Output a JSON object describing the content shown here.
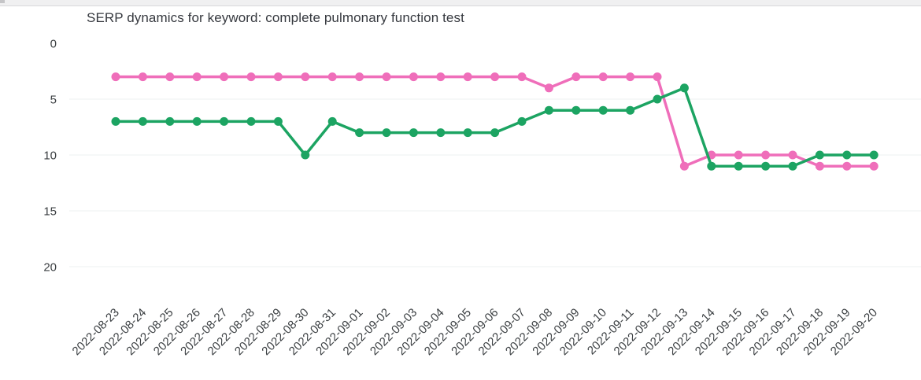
{
  "chart_data": {
    "type": "line",
    "title": "SERP dynamics for keyword: complete pulmonary function test",
    "x": [
      "2022-08-23",
      "2022-08-24",
      "2022-08-25",
      "2022-08-26",
      "2022-08-27",
      "2022-08-28",
      "2022-08-29",
      "2022-08-30",
      "2022-08-31",
      "2022-09-01",
      "2022-09-02",
      "2022-09-03",
      "2022-09-04",
      "2022-09-05",
      "2022-09-06",
      "2022-09-07",
      "2022-09-08",
      "2022-09-09",
      "2022-09-10",
      "2022-09-11",
      "2022-09-12",
      "2022-09-13",
      "2022-09-14",
      "2022-09-15",
      "2022-09-16",
      "2022-09-17",
      "2022-09-18",
      "2022-09-19",
      "2022-09-20"
    ],
    "series": [
      {
        "id": "pink-series",
        "name": "pink",
        "color": "#ef6eba",
        "values": [
          3,
          3,
          3,
          3,
          3,
          3,
          3,
          3,
          3,
          3,
          3,
          3,
          3,
          3,
          3,
          3,
          4,
          3,
          3,
          3,
          3,
          11,
          10,
          10,
          10,
          10,
          11,
          11,
          11
        ]
      },
      {
        "id": "green-series",
        "name": "green",
        "color": "#1ca462",
        "values": [
          7,
          7,
          7,
          7,
          7,
          7,
          7,
          10,
          7,
          8,
          8,
          8,
          8,
          8,
          8,
          7,
          6,
          6,
          6,
          6,
          5,
          4,
          11,
          11,
          11,
          11,
          10,
          10,
          10
        ]
      }
    ],
    "y_axis": {
      "ticks": [
        0,
        5,
        10,
        15,
        20
      ],
      "inverted": true,
      "label_side": "left"
    },
    "x_tick_rotation": -45,
    "grid": "horizontal",
    "legend": "none"
  }
}
